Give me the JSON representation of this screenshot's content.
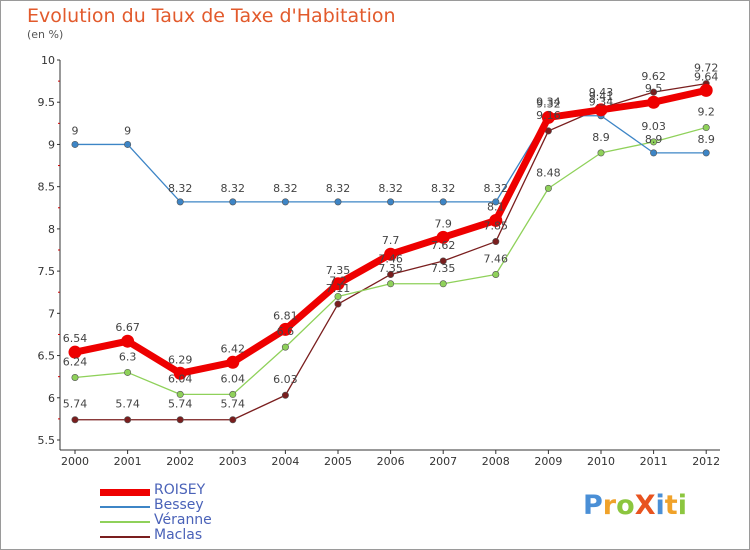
{
  "chart_data": {
    "type": "line",
    "title": "Evolution du Taux de Taxe d'Habitation",
    "subtitle": "(en %)",
    "xlabel": "",
    "ylabel": "",
    "categories": [
      "2000",
      "2001",
      "2002",
      "2003",
      "2004",
      "2005",
      "2006",
      "2007",
      "2008",
      "2009",
      "2010",
      "2011",
      "2012"
    ],
    "ylim": [
      5.5,
      10
    ],
    "yticks": [
      "5.5",
      "6",
      "6.5",
      "7",
      "7.5",
      "8",
      "8.5",
      "9",
      "9.5",
      "10"
    ],
    "grid": false,
    "legend_position": "bottom-left",
    "series": [
      {
        "name": "ROISEY",
        "color": "#ee0000",
        "values": [
          6.54,
          6.67,
          6.29,
          6.42,
          6.81,
          7.35,
          7.7,
          7.9,
          8.1,
          9.32,
          9.41,
          9.5,
          9.64
        ],
        "labels": [
          "6.54",
          "6.67",
          "6.29",
          "6.42",
          "6.81",
          "7.35",
          "7.7",
          "7.9",
          "8.1",
          "9.32",
          "9.41",
          "9.5",
          "9.64"
        ]
      },
      {
        "name": "Bessey",
        "color": "#3d85c6",
        "values": [
          9,
          9,
          8.32,
          8.32,
          8.32,
          8.32,
          8.32,
          8.32,
          8.32,
          9.34,
          9.34,
          8.9,
          8.9
        ],
        "labels": [
          "9",
          "9",
          "8.32",
          "8.32",
          "8.32",
          "8.32",
          "8.32",
          "8.32",
          "8.32",
          "9.34",
          "9.34",
          "8.9",
          "8.9"
        ]
      },
      {
        "name": "Véranne",
        "color": "#8fd15a",
        "values": [
          6.24,
          6.3,
          6.04,
          6.04,
          6.6,
          7.2,
          7.35,
          7.35,
          7.46,
          8.48,
          8.9,
          9.03,
          9.2
        ],
        "labels": [
          "6.24",
          "6.3",
          "6.04",
          "6.04",
          "6.6",
          "7.2",
          "7.35",
          "7.35",
          "7.46",
          "8.48",
          "8.9",
          "9.03",
          "9.2"
        ]
      },
      {
        "name": "Maclas",
        "color": "#7a1e1e",
        "values": [
          5.74,
          5.74,
          5.74,
          5.74,
          6.03,
          7.11,
          7.46,
          7.62,
          7.85,
          9.16,
          9.43,
          9.62,
          9.72
        ],
        "labels": [
          "5.74",
          "5.74",
          "5.74",
          "5.74",
          "6.03",
          "7.11",
          "7.46",
          "7.62",
          "7.85",
          "9.16",
          "9.43",
          "9.62",
          "9.72"
        ]
      }
    ]
  },
  "logo": {
    "letters": [
      {
        "ch": "P",
        "color": "#4a8fd6"
      },
      {
        "ch": "r",
        "color": "#f0a22a"
      },
      {
        "ch": "o",
        "color": "#8cc63f"
      },
      {
        "ch": "X",
        "color": "#e8531f"
      },
      {
        "ch": "i",
        "color": "#4a8fd6"
      },
      {
        "ch": "t",
        "color": "#f0a22a"
      },
      {
        "ch": "i",
        "color": "#8cc63f"
      }
    ]
  }
}
